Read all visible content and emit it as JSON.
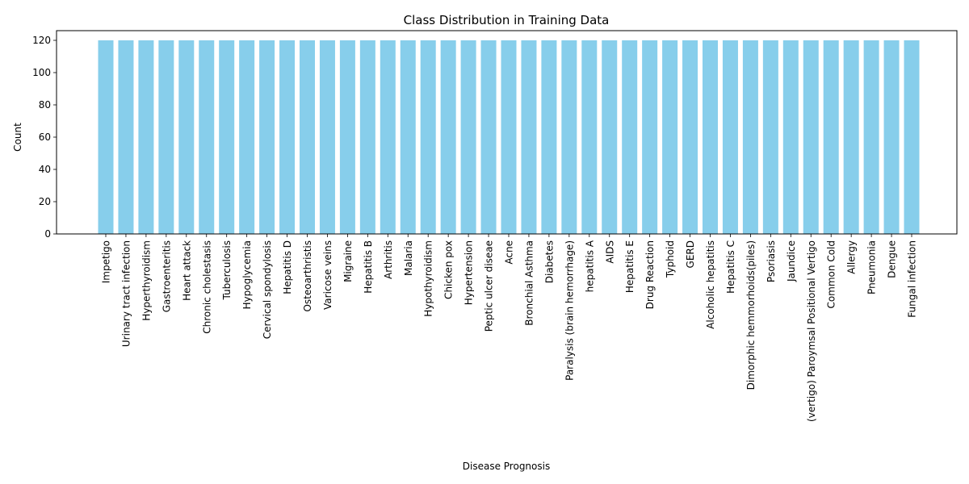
{
  "chart_data": {
    "type": "bar",
    "title": "Class Distribution in Training Data",
    "xlabel": "Disease Prognosis",
    "ylabel": "Count",
    "ylim": [
      0,
      126
    ],
    "yticks": [
      0,
      20,
      40,
      60,
      80,
      100,
      120
    ],
    "grid": false,
    "bar_color": "#87ceeb",
    "categories": [
      "Impetigo",
      "Urinary tract infection",
      "Hyperthyroidism",
      "Gastroenteritis",
      "Heart attack",
      "Chronic cholestasis",
      "Tuberculosis",
      "Hypoglycemia",
      "Cervical spondylosis",
      "Hepatitis D",
      "Osteoarthristis",
      "Varicose veins",
      "Migraine",
      "Hepatitis B",
      "Arthritis",
      "Malaria",
      "Hypothyroidism",
      "Chicken pox",
      "Hypertension",
      "Peptic ulcer diseae",
      "Acne",
      "Bronchial Asthma",
      "Diabetes",
      "Paralysis (brain hemorrhage)",
      "hepatitis A",
      "AIDS",
      "Hepatitis E",
      "Drug Reaction",
      "Typhoid",
      "GERD",
      "Alcoholic hepatitis",
      "Hepatitis C",
      "Dimorphic hemmorhoids(piles)",
      "Psoriasis",
      "Jaundice",
      "(vertigo) Paroymsal  Positional Vertigo",
      "Common Cold",
      "Allergy",
      "Pneumonia",
      "Dengue",
      "Fungal infection"
    ],
    "values": [
      120,
      120,
      120,
      120,
      120,
      120,
      120,
      120,
      120,
      120,
      120,
      120,
      120,
      120,
      120,
      120,
      120,
      120,
      120,
      120,
      120,
      120,
      120,
      120,
      120,
      120,
      120,
      120,
      120,
      120,
      120,
      120,
      120,
      120,
      120,
      120,
      120,
      120,
      120,
      120,
      120
    ]
  }
}
